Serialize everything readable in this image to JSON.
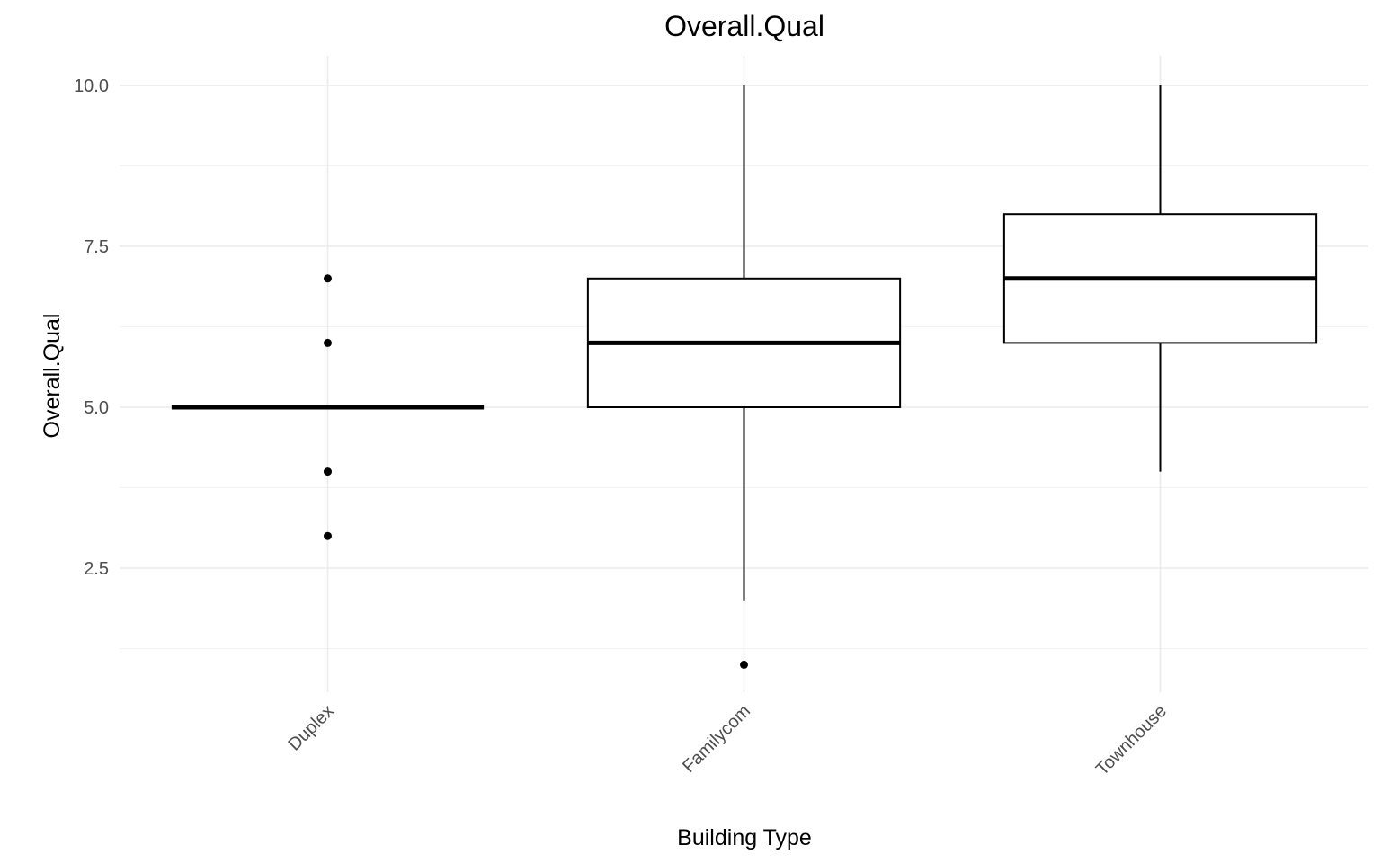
{
  "chart_data": {
    "type": "box",
    "title": "Overall.Qual",
    "xlabel": "Building Type",
    "ylabel": "Overall.Qual",
    "ylim": [
      0.6,
      10.5
    ],
    "y_ticks": [
      2.5,
      5.0,
      7.5,
      10.0
    ],
    "y_tick_labels": [
      "2.5",
      "5.0",
      "7.5",
      "10.0"
    ],
    "categories": [
      "Duplex",
      "Familycom",
      "Townhouse"
    ],
    "boxes": [
      {
        "category": "Duplex",
        "lower_whisker": 5,
        "q1": 5,
        "median": 5,
        "q3": 5,
        "upper_whisker": 5,
        "outliers": [
          3,
          4,
          6,
          7
        ]
      },
      {
        "category": "Familycom",
        "lower_whisker": 2,
        "q1": 5,
        "median": 6,
        "q3": 7,
        "upper_whisker": 10,
        "outliers": [
          1
        ]
      },
      {
        "category": "Townhouse",
        "lower_whisker": 4,
        "q1": 6,
        "median": 7,
        "q3": 8,
        "upper_whisker": 10,
        "outliers": []
      }
    ],
    "grid": true,
    "x_tick_label_angle": 45,
    "legend": "none"
  }
}
